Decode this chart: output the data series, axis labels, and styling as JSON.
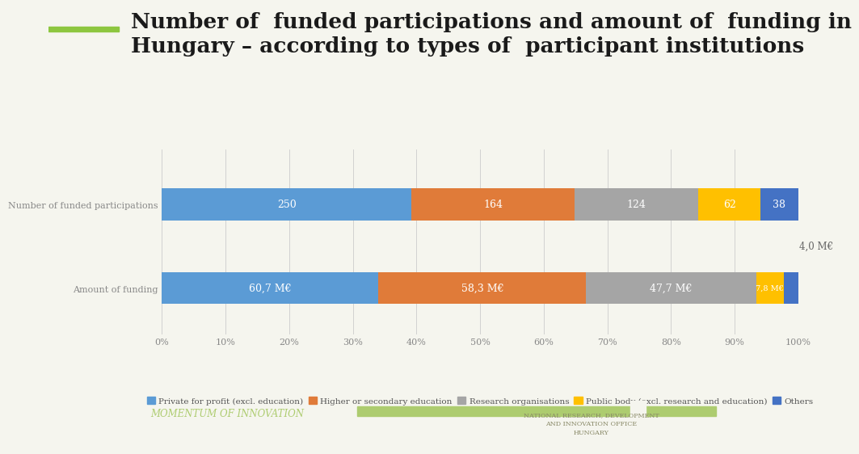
{
  "title_line1": "Number of  funded participations and amount of  funding in",
  "title_line2": "Hungary – according to types of  participant institutions",
  "categories": [
    "Number of funded participations",
    "Amount of funding"
  ],
  "series_labels": [
    "Private for profit (excl. education)",
    "Higher or secondary education",
    "Research organisations",
    "Public body (excl. research and education)",
    "Others"
  ],
  "colors": [
    "#5B9BD5",
    "#E07B39",
    "#A5A5A5",
    "#FFC000",
    "#4472C4"
  ],
  "participations": [
    250,
    164,
    124,
    62,
    38
  ],
  "funding_values": [
    60.7,
    58.3,
    47.7,
    7.8,
    4.0
  ],
  "participation_labels": [
    "250",
    "164",
    "124",
    "62",
    "38"
  ],
  "funding_labels": [
    "60,7 M€",
    "58,3 M€",
    "47,7 M€",
    "7,8 M€",
    "4,0 M€"
  ],
  "background_color": "#F5F5EE",
  "bar_height": 0.38,
  "title_fontsize": 19,
  "label_fontsize": 9,
  "tick_fontsize": 8,
  "legend_fontsize": 7.5,
  "ylabel_fontsize": 8
}
